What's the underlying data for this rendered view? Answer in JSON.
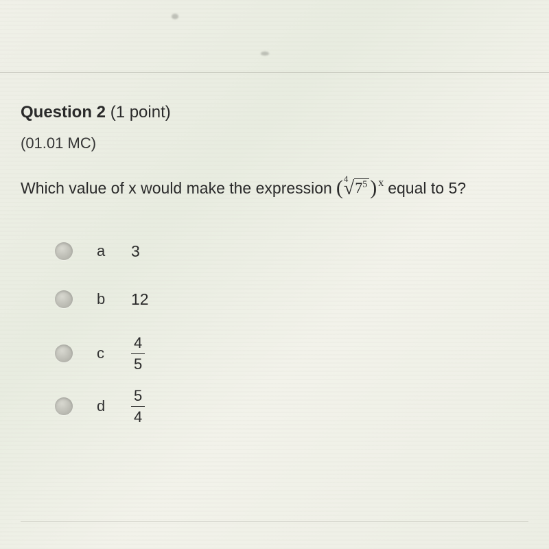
{
  "divider_top_color": "rgba(150,150,140,0.4)",
  "question": {
    "label": "Question 2",
    "points": "(1 point)",
    "code": "(01.01 MC)",
    "prompt_before": "Which value of x would make the expression",
    "prompt_after": "equal to 5?",
    "expression": {
      "root_index": "4",
      "base": "7",
      "base_exp": "5",
      "outer_exp": "x"
    }
  },
  "options": [
    {
      "letter": "a",
      "type": "int",
      "value": "3"
    },
    {
      "letter": "b",
      "type": "int",
      "value": "12"
    },
    {
      "letter": "c",
      "type": "frac",
      "num": "4",
      "den": "5"
    },
    {
      "letter": "d",
      "type": "frac",
      "num": "5",
      "den": "4"
    }
  ],
  "colors": {
    "text": "#2a2a2a",
    "radio_light": "#d8d8d0",
    "radio_dark": "#a8a8a0",
    "bg_tint": "#f0f0e8"
  },
  "fontsize": {
    "header": 24,
    "body": 23,
    "option": 22
  }
}
